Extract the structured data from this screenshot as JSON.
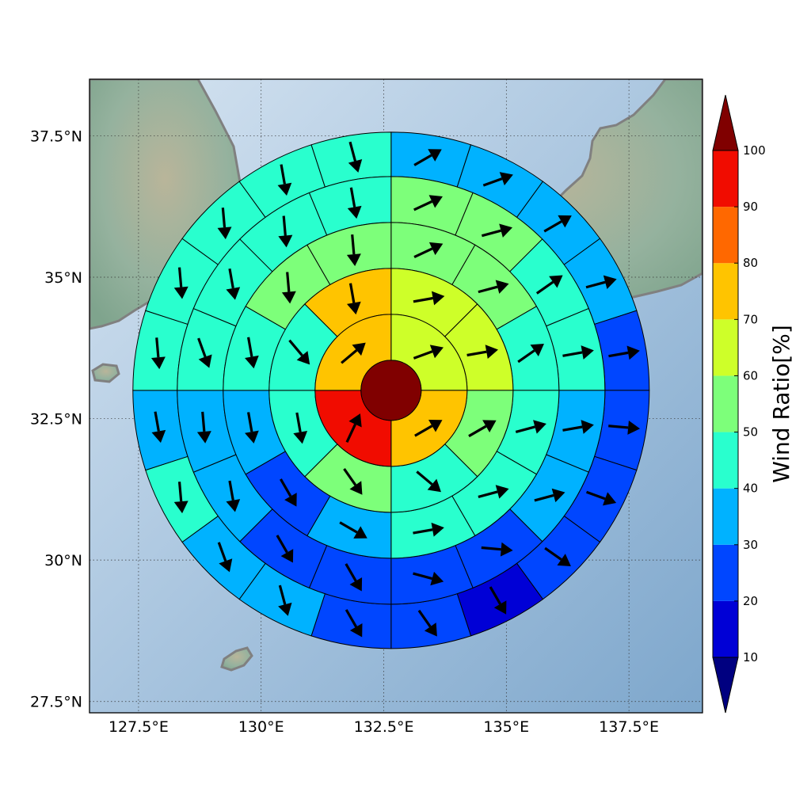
{
  "map": {
    "lon_range": [
      126.5,
      139.0
    ],
    "lat_range": [
      27.3,
      38.5
    ],
    "center": {
      "lon": 132.65,
      "lat": 33.0
    },
    "lon_ticks": [
      {
        "value": 127.5,
        "label": "127.5°E"
      },
      {
        "value": 130.0,
        "label": "130°E"
      },
      {
        "value": 132.5,
        "label": "132.5°E"
      },
      {
        "value": 135.0,
        "label": "135°E"
      },
      {
        "value": 137.5,
        "label": "137.5°E"
      }
    ],
    "lat_ticks": [
      {
        "value": 37.5,
        "label": "37.5°N"
      },
      {
        "value": 35.0,
        "label": "35°N"
      },
      {
        "value": 32.5,
        "label": "32.5°N"
      },
      {
        "value": 30.0,
        "label": "30°N"
      },
      {
        "value": 27.5,
        "label": "27.5°N"
      }
    ],
    "colors": {
      "ocean": "#9dbfdd",
      "land": "#8fae98",
      "coast": "#808080",
      "grid": "#333333"
    }
  },
  "chart_data": {
    "type": "heatmap",
    "description_units": "Wind Ratio[%]",
    "center_value": 100,
    "rings": [
      {
        "values": [
          65,
          75,
          95,
          75
        ]
      },
      {
        "values": [
          60,
          60,
          55,
          40,
          50,
          40,
          45,
          70
        ]
      },
      {
        "values": [
          55,
          55,
          45,
          45,
          40,
          40,
          35,
          25,
          30,
          40,
          50,
          50
        ]
      },
      {
        "values": [
          50,
          50,
          40,
          40,
          35,
          35,
          25,
          25,
          20,
          20,
          30,
          35,
          40,
          40,
          45,
          45
        ]
      },
      {
        "values": [
          35,
          30,
          35,
          30,
          25,
          20,
          25,
          20,
          15,
          20,
          20,
          30,
          35,
          40,
          35,
          45,
          40,
          45,
          40,
          40
        ]
      },
      {
        "values": [
          30,
          30,
          35,
          40,
          35,
          30,
          25,
          20,
          15,
          15,
          20,
          20,
          20,
          25,
          25,
          30,
          30,
          30,
          25,
          40,
          35,
          40,
          30,
          40
        ]
      }
    ],
    "arrow_dirs": [
      [
        70,
        60,
        25,
        50
      ],
      [
        80,
        80,
        60,
        130,
        145,
        170,
        140,
        170
      ],
      [
        65,
        75,
        55,
        75,
        75,
        80,
        120,
        150,
        170,
        170,
        175,
        175
      ],
      [
        65,
        75,
        55,
        80,
        80,
        75,
        95,
        105,
        150,
        150,
        170,
        175,
        160,
        170,
        175,
        170
      ],
      [
        60,
        70,
        60,
        75,
        80,
        95,
        110,
        125,
        150,
        145,
        150,
        165,
        160,
        175,
        170,
        175,
        175,
        175,
        170,
        165
      ],
      [
        60,
        80,
        75,
        100,
        110,
        110,
        125,
        145,
        145,
        165,
        165,
        160,
        165,
        160,
        160,
        175,
        160,
        170,
        175,
        175,
        175,
        175,
        175,
        170
      ]
    ],
    "colorbar": {
      "label": "Wind Ratio[%]",
      "bounds": [
        10,
        20,
        30,
        40,
        50,
        60,
        70,
        80,
        90,
        100
      ],
      "tick_labels": [
        "10",
        "20",
        "30",
        "40",
        "50",
        "60",
        "70",
        "80",
        "90",
        "100"
      ],
      "colors": [
        "#0000d6",
        "#0046ff",
        "#00b2ff",
        "#29ffce",
        "#7dff7a",
        "#ceff29",
        "#ffc400",
        "#ff6800",
        "#f10c00"
      ],
      "under_color": "#000080",
      "over_color": "#800000"
    }
  }
}
